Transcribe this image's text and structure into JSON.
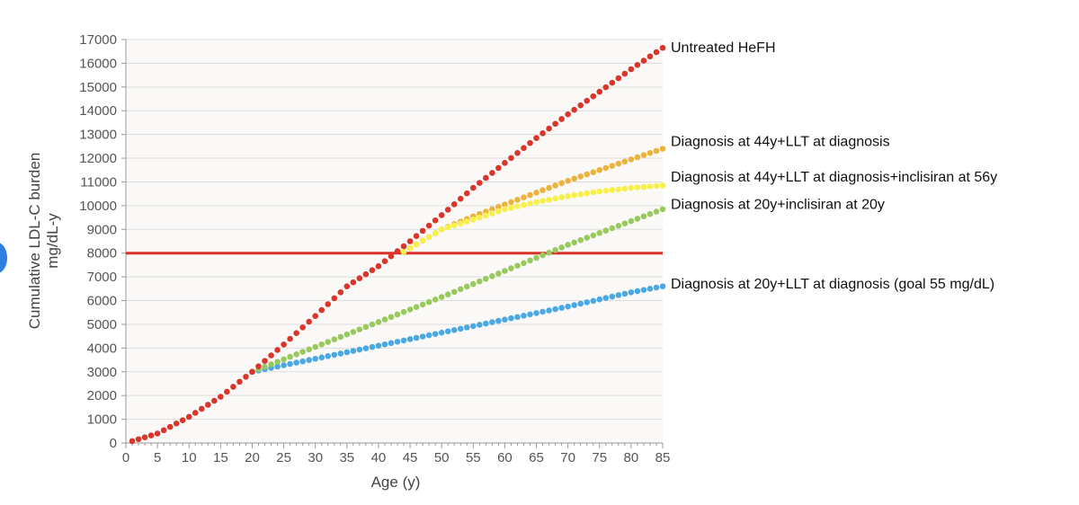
{
  "chart_data": {
    "type": "scatter",
    "xlabel": "Age (y)",
    "ylabel": [
      "Cumulative LDL-C burden",
      "mg/dL-y"
    ],
    "xlim": [
      0,
      85
    ],
    "ylim": [
      0,
      17000
    ],
    "x_ticks": [
      0,
      5,
      10,
      15,
      20,
      25,
      30,
      35,
      40,
      45,
      50,
      55,
      60,
      65,
      70,
      75,
      80,
      85
    ],
    "y_ticks": [
      0,
      1000,
      2000,
      3000,
      4000,
      5000,
      6000,
      7000,
      8000,
      9000,
      10000,
      11000,
      12000,
      13000,
      14000,
      15000,
      16000,
      17000
    ],
    "grid": "horizontal",
    "threshold": {
      "y": 8000,
      "color": "#d9322b"
    },
    "series": [
      {
        "name": "Untreated HeFH",
        "color": "#d9362b",
        "x_start": 1,
        "x_end": 85,
        "points": 85,
        "curve": [
          [
            1,
            80
          ],
          [
            5,
            400
          ],
          [
            10,
            1100
          ],
          [
            15,
            1950
          ],
          [
            20,
            3000
          ],
          [
            25,
            4150
          ],
          [
            30,
            5350
          ],
          [
            35,
            6600
          ],
          [
            40,
            7450
          ],
          [
            45,
            8500
          ],
          [
            50,
            9600
          ],
          [
            55,
            10750
          ],
          [
            60,
            11800
          ],
          [
            65,
            12850
          ],
          [
            70,
            13850
          ],
          [
            75,
            14800
          ],
          [
            80,
            15750
          ],
          [
            85,
            16650
          ]
        ]
      },
      {
        "name": "Diagnosis at 44y+LLT at diagnosis",
        "color": "#ecb33c",
        "x_start": 44,
        "x_end": 85,
        "points": 42,
        "curve": [
          [
            44,
            8050
          ],
          [
            50,
            9000
          ],
          [
            55,
            9550
          ],
          [
            60,
            10050
          ],
          [
            65,
            10550
          ],
          [
            70,
            11050
          ],
          [
            75,
            11500
          ],
          [
            80,
            11950
          ],
          [
            85,
            12400
          ]
        ]
      },
      {
        "name": "Diagnosis at 44y+LLT at diagnosis+inclisiran at 56y",
        "color": "#f7f04a",
        "x_start": 44,
        "x_end": 85,
        "points": 42,
        "curve": [
          [
            44,
            8050
          ],
          [
            50,
            9000
          ],
          [
            56,
            9500
          ],
          [
            60,
            9850
          ],
          [
            65,
            10150
          ],
          [
            70,
            10400
          ],
          [
            75,
            10600
          ],
          [
            80,
            10750
          ],
          [
            85,
            10850
          ]
        ]
      },
      {
        "name": "Diagnosis at 20y+inclisiran at 20y",
        "color": "#97c95c",
        "x_start": 20,
        "x_end": 85,
        "points": 66,
        "curve": [
          [
            20,
            3000
          ],
          [
            30,
            4050
          ],
          [
            40,
            5100
          ],
          [
            50,
            6150
          ],
          [
            60,
            7250
          ],
          [
            70,
            8350
          ],
          [
            80,
            9350
          ],
          [
            85,
            9850
          ]
        ]
      },
      {
        "name": "Diagnosis at 20y+LLT at diagnosis (goal 55 mg/dL)",
        "color": "#4aa8e4",
        "x_start": 20,
        "x_end": 85,
        "points": 66,
        "curve": [
          [
            20,
            3000
          ],
          [
            30,
            3550
          ],
          [
            40,
            4100
          ],
          [
            50,
            4650
          ],
          [
            60,
            5200
          ],
          [
            70,
            5750
          ],
          [
            80,
            6350
          ],
          [
            85,
            6600
          ]
        ]
      }
    ],
    "labels": [
      {
        "text": "Untreated HeFH",
        "anchor_y": 16650
      },
      {
        "text": "Diagnosis at 44y+LLT at diagnosis",
        "anchor_y": 12700
      },
      {
        "text": "Diagnosis at 44y+LLT at diagnosis+inclisiran at 56y",
        "anchor_y": 11200
      },
      {
        "text": "Diagnosis at 20y+inclisiran at 20y",
        "anchor_y": 10050
      },
      {
        "text": "Diagnosis at 20y+LLT at diagnosis (goal 55 mg/dL)",
        "anchor_y": 6700
      }
    ]
  }
}
